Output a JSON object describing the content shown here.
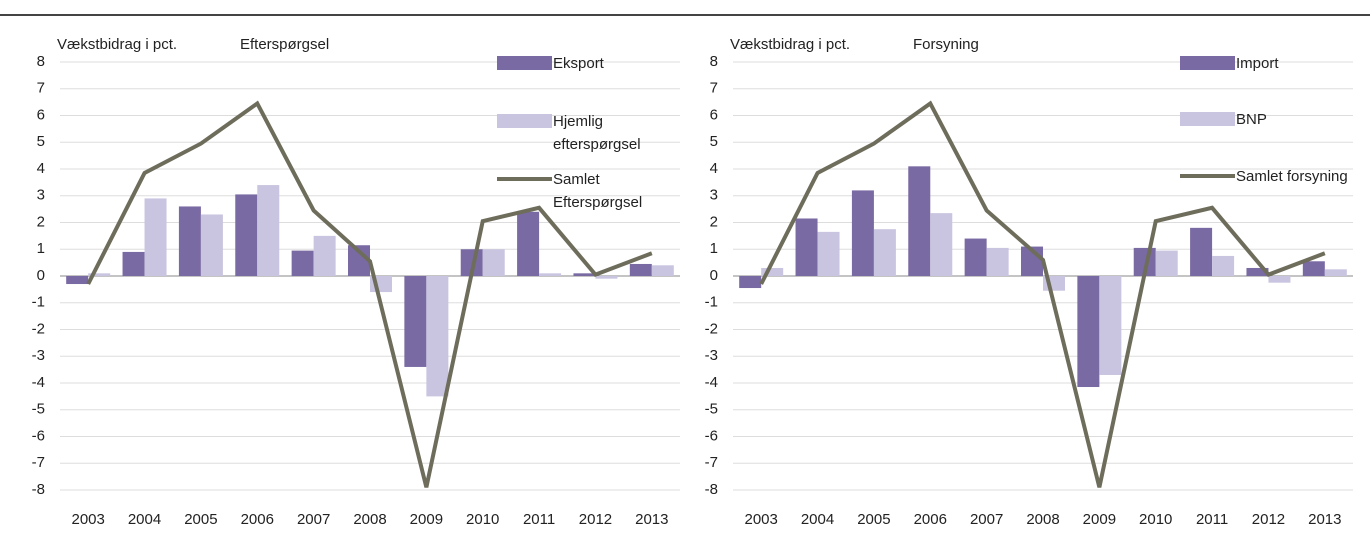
{
  "chart_data": [
    {
      "type": "bar",
      "y_label": "Vækstbidrag i pct.",
      "subtitle": "Efterspørgsel",
      "categories": [
        "2003",
        "2004",
        "2005",
        "2006",
        "2007",
        "2008",
        "2009",
        "2010",
        "2011",
        "2012",
        "2013"
      ],
      "ylim": [
        -8,
        8
      ],
      "yticks": [
        -8,
        -7,
        -6,
        -5,
        -4,
        -3,
        -2,
        -1,
        0,
        1,
        2,
        3,
        4,
        5,
        6,
        7,
        8
      ],
      "grid": true,
      "series": [
        {
          "name": "Eksport",
          "type": "bar",
          "color": "#7a6aa3",
          "values": [
            -0.3,
            0.9,
            2.6,
            3.05,
            0.95,
            1.15,
            -3.4,
            1.0,
            2.4,
            0.1,
            0.45
          ]
        },
        {
          "name": "Hjemlig efterspørgsel",
          "type": "bar",
          "color": "#c9c5e0",
          "values": [
            0.1,
            2.9,
            2.3,
            3.4,
            1.5,
            -0.6,
            -4.5,
            1.0,
            0.1,
            -0.1,
            0.4
          ]
        },
        {
          "name": "Samlet Efterspørgsel",
          "type": "line",
          "color": "#6e6d5c",
          "values": [
            -0.3,
            3.85,
            4.95,
            6.45,
            2.45,
            0.55,
            -7.9,
            2.05,
            2.55,
            0.05,
            0.85
          ]
        }
      ]
    },
    {
      "type": "bar",
      "y_label": "Vækstbidrag i pct.",
      "subtitle": "Forsyning",
      "categories": [
        "2003",
        "2004",
        "2005",
        "2006",
        "2007",
        "2008",
        "2009",
        "2010",
        "2011",
        "2012",
        "2013"
      ],
      "ylim": [
        -8,
        8
      ],
      "yticks": [
        -8,
        -7,
        -6,
        -5,
        -4,
        -3,
        -2,
        -1,
        0,
        1,
        2,
        3,
        4,
        5,
        6,
        7,
        8
      ],
      "grid": true,
      "series": [
        {
          "name": "Import",
          "type": "bar",
          "color": "#7a6aa3",
          "values": [
            -0.45,
            2.15,
            3.2,
            4.1,
            1.4,
            1.1,
            -4.15,
            1.05,
            1.8,
            0.3,
            0.55
          ]
        },
        {
          "name": "BNP",
          "type": "bar",
          "color": "#c9c5e0",
          "values": [
            0.3,
            1.65,
            1.75,
            2.35,
            1.05,
            -0.55,
            -3.7,
            0.95,
            0.75,
            -0.25,
            0.25
          ]
        },
        {
          "name": "Samlet forsyning",
          "type": "line",
          "color": "#6e6d5c",
          "values": [
            -0.3,
            3.85,
            4.95,
            6.45,
            2.45,
            0.6,
            -7.9,
            2.05,
            2.55,
            0.05,
            0.85
          ]
        }
      ]
    }
  ]
}
